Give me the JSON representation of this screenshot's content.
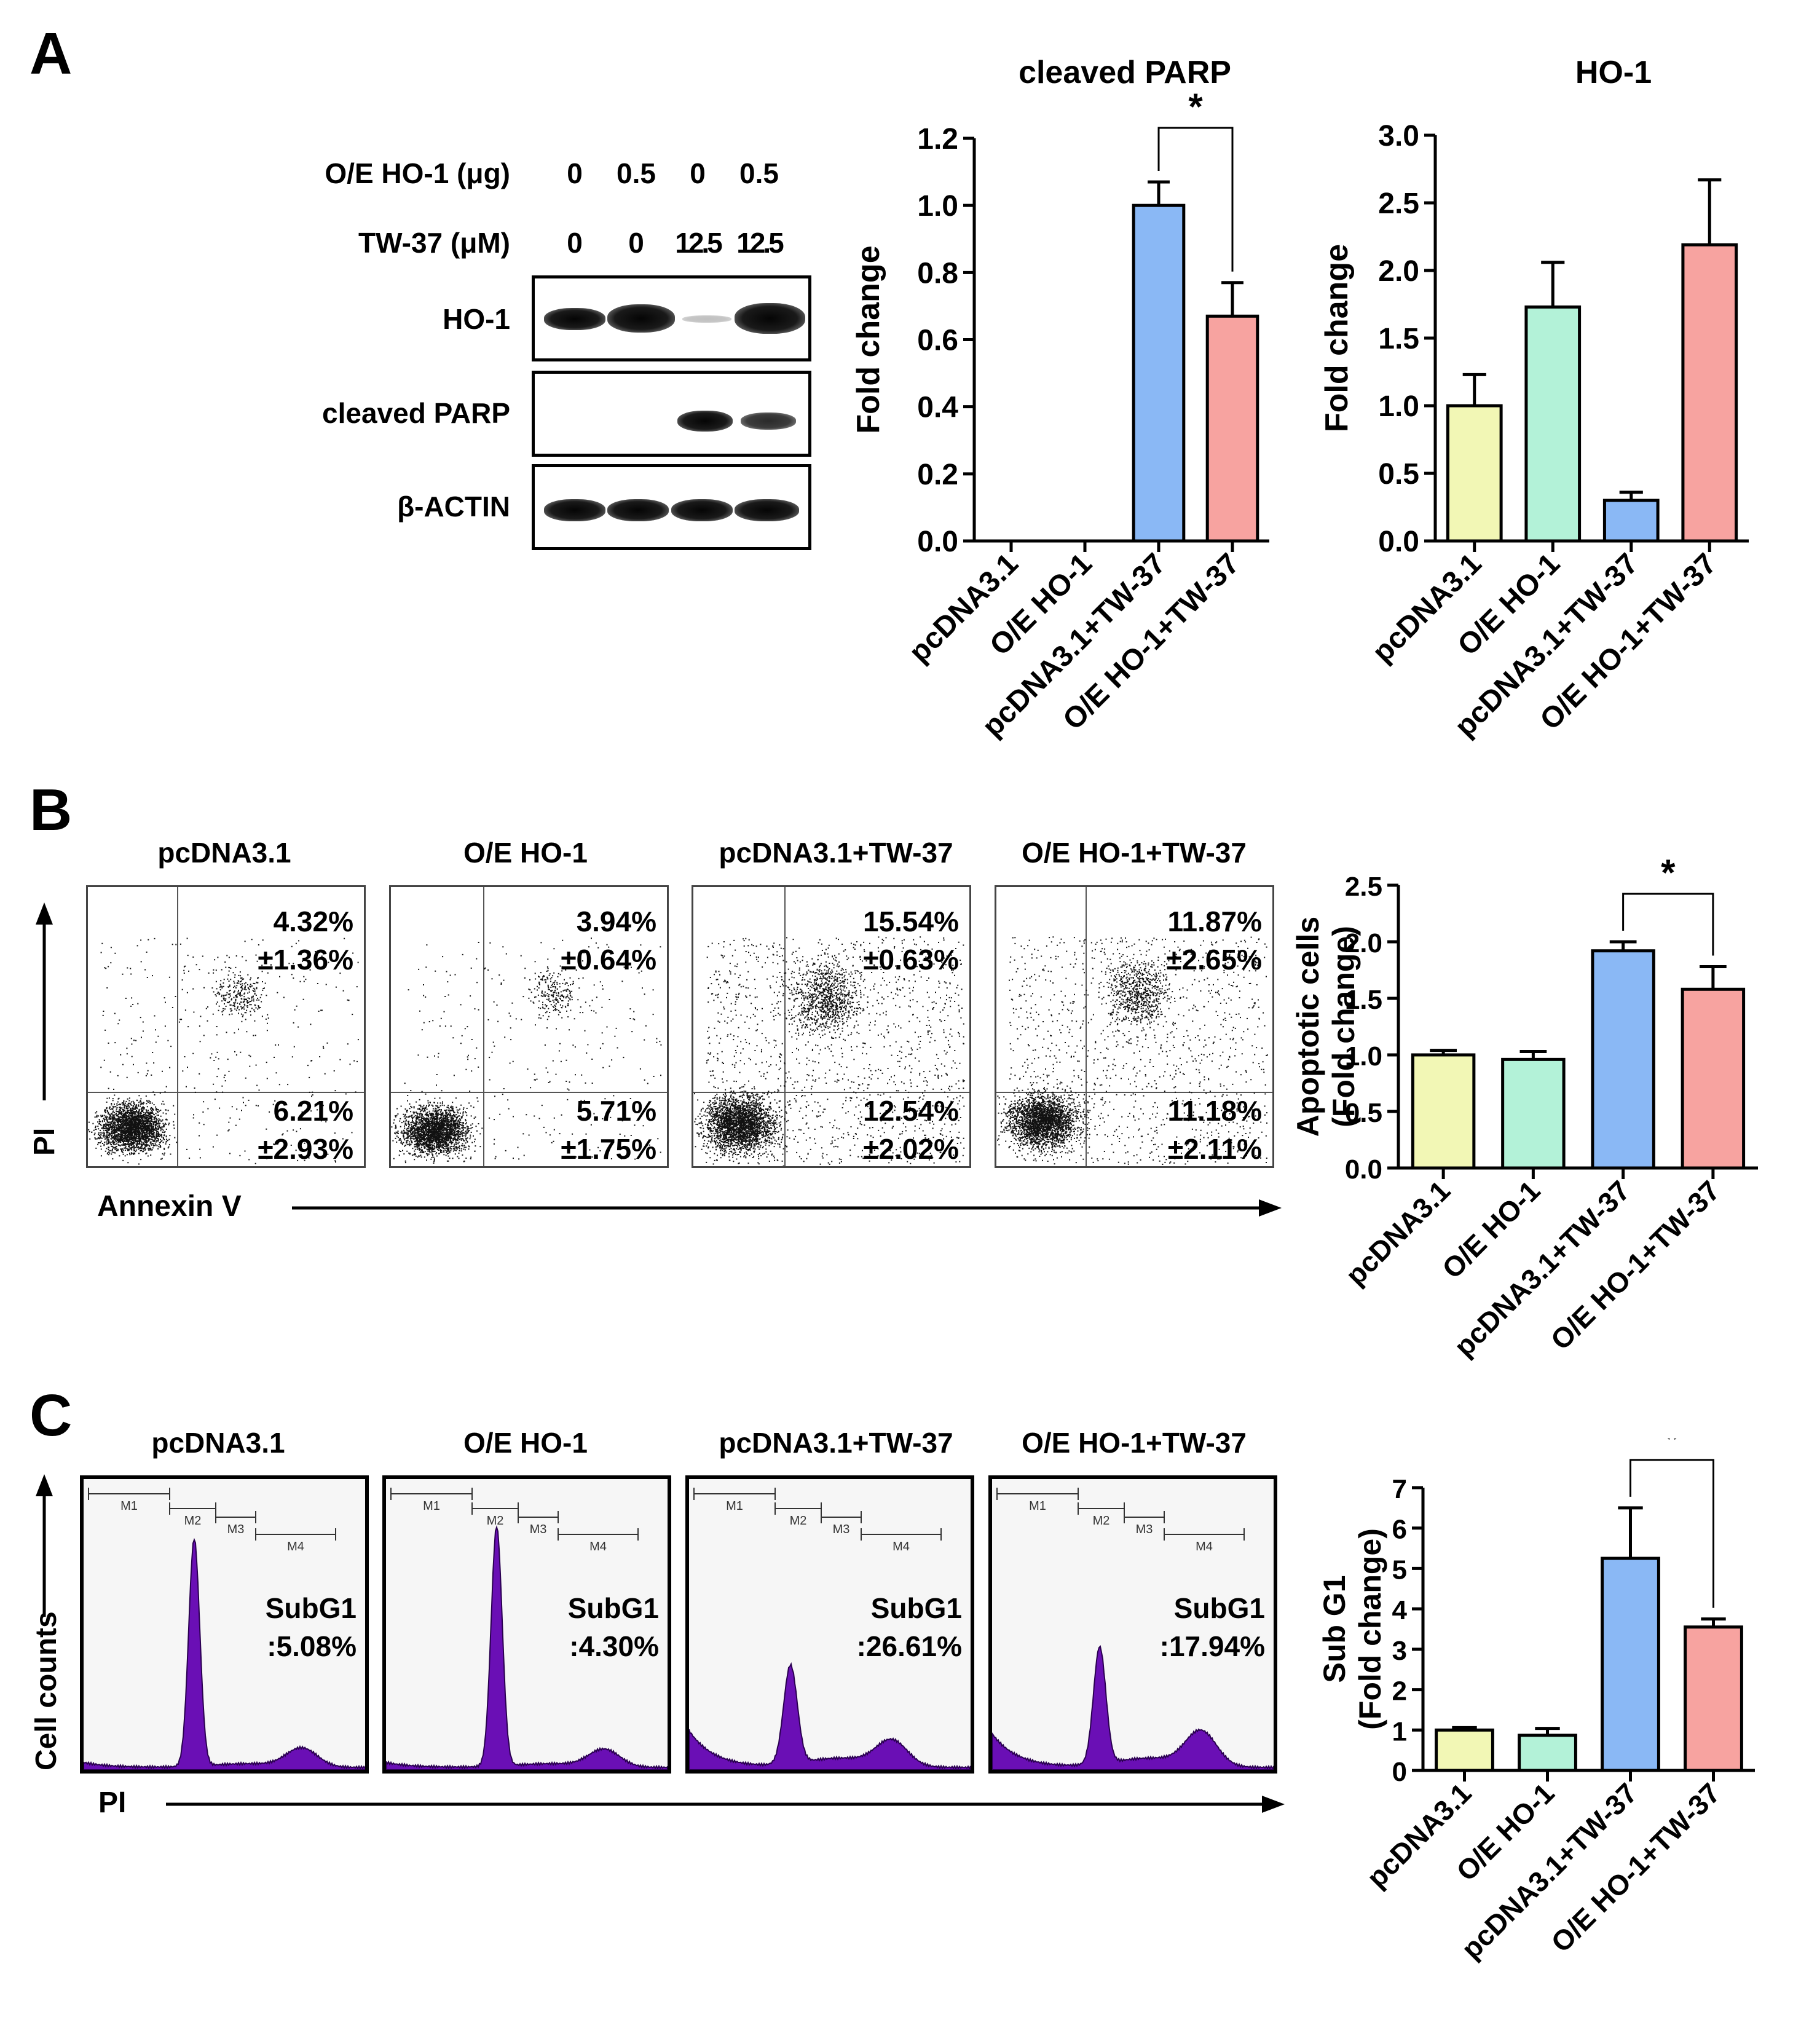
{
  "panel_labels": [
    "A",
    "B",
    "C"
  ],
  "western_blot": {
    "row_labels": {
      "oe_dose": "O/E HO-1 (μg)",
      "tw37": "TW-37 (μM)"
    },
    "oe_dose_values": [
      "0",
      "0.5",
      "0",
      "0.5"
    ],
    "tw37_values": [
      "0",
      "0",
      "12.5",
      "12.5"
    ],
    "blots": [
      "HO-1",
      "cleaved PARP",
      "β-ACTIN"
    ]
  },
  "conditions": [
    "pcDNA3.1",
    "O/E HO-1",
    "pcDNA3.1+TW-37",
    "O/E HO-1+TW-37"
  ],
  "flow_b": {
    "quadrants": [
      {
        "ur": "4.32%\n±1.36%",
        "lr": "6.21%\n±2.93%"
      },
      {
        "ur": "3.94%\n±0.64%",
        "lr": "5.71%\n±1.75%"
      },
      {
        "ur": "15.54%\n±0.63%",
        "lr": "12.54%\n±2.02%"
      },
      {
        "ur": "11.87%\n±2.65%",
        "lr": "11.18%\n±2.11%"
      }
    ],
    "y_axis": "PI",
    "x_axis": "Annexin V"
  },
  "hist_c": {
    "subg1": [
      "SubG1\n:5.08%",
      "SubG1\n:4.30%",
      "SubG1\n:26.61%",
      "SubG1\n:17.94%"
    ],
    "gates": [
      "M1",
      "M2",
      "M3",
      "M4"
    ],
    "y_axis": "Cell counts",
    "x_axis": "PI"
  },
  "colors": {
    "yellow": "#F2F7B5",
    "green": "#B3F2D8",
    "blue": "#8AB8F5",
    "red": "#F7A3A0",
    "purple": "#6A0FB5"
  },
  "chart_data": [
    {
      "id": "parp",
      "type": "bar",
      "title": "cleaved PARP",
      "ylabel": "Fold change",
      "categories": [
        "pcDNA3.1",
        "O/E HO-1",
        "pcDNA3.1+TW-37",
        "O/E HO-1+TW-37"
      ],
      "values": [
        0,
        0,
        1.0,
        0.67
      ],
      "errors": [
        0,
        0,
        0.07,
        0.1
      ],
      "ylim": [
        0,
        1.2
      ],
      "yticks": [
        "0.0",
        "0.2",
        "0.4",
        "0.6",
        "0.8",
        "1.0",
        "1.2"
      ],
      "significance": {
        "from": 2,
        "to": 3,
        "label": "*"
      }
    },
    {
      "id": "ho1",
      "type": "bar",
      "title": "HO-1",
      "ylabel": "Fold change",
      "categories": [
        "pcDNA3.1",
        "O/E HO-1",
        "pcDNA3.1+TW-37",
        "O/E HO-1+TW-37"
      ],
      "values": [
        1.0,
        1.73,
        0.3,
        2.19
      ],
      "errors": [
        0.23,
        0.33,
        0.06,
        0.48
      ],
      "ylim": [
        0,
        3.0
      ],
      "yticks": [
        "0.0",
        "0.5",
        "1.0",
        "1.5",
        "2.0",
        "2.5",
        "3.0"
      ]
    },
    {
      "id": "apop",
      "type": "bar",
      "ylabel": "Apoptotic cells",
      "ylabel2": "(Fold change)",
      "categories": [
        "pcDNA3.1",
        "O/E HO-1",
        "pcDNA3.1+TW-37",
        "O/E HO-1+TW-37"
      ],
      "values": [
        1.0,
        0.96,
        1.92,
        1.58
      ],
      "errors": [
        0.04,
        0.07,
        0.08,
        0.2
      ],
      "ylim": [
        0,
        2.5
      ],
      "yticks": [
        "0.0",
        "0.5",
        "1.0",
        "1.5",
        "2.0",
        "2.5"
      ],
      "significance": {
        "from": 2,
        "to": 3,
        "label": "*"
      }
    },
    {
      "id": "subg1",
      "type": "bar",
      "ylabel": "Sub G1",
      "ylabel2": "(Fold change)",
      "categories": [
        "pcDNA3.1",
        "O/E HO-1",
        "pcDNA3.1+TW-37",
        "O/E HO-1+TW-37"
      ],
      "values": [
        1.0,
        0.87,
        5.25,
        3.55
      ],
      "errors": [
        0.06,
        0.17,
        1.25,
        0.2
      ],
      "ylim": [
        0,
        7
      ],
      "yticks": [
        "0",
        "1",
        "2",
        "3",
        "4",
        "5",
        "6",
        "7"
      ],
      "significance": {
        "from": 2,
        "to": 3,
        "label": "*"
      }
    }
  ]
}
